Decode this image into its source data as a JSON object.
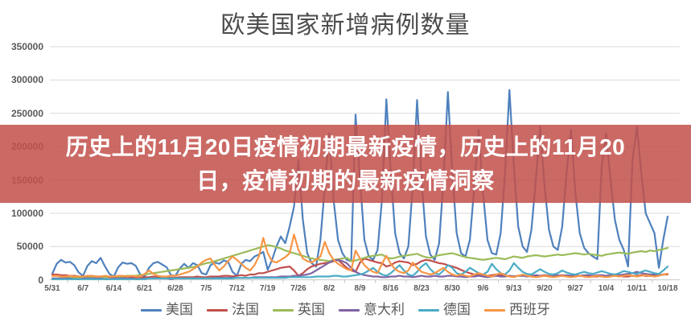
{
  "title": "欧美国家新增病例数量",
  "banner": {
    "line1": "历史上的11月20日疫情初期最新疫情，历史上的11月20",
    "line2": "日，疫情初期的最新疫情洞察",
    "background": "rgba(194,80,74,0.86)",
    "text_color": "#ffffff"
  },
  "axis_style": {
    "grid_color": "#d9d9d9",
    "axis_color": "#c6c6c6",
    "label_color": "#595959"
  },
  "chart_data": {
    "type": "line",
    "title": "欧美国家新增病例数量",
    "xlabel": "",
    "ylabel": "",
    "ylim": [
      0,
      350000
    ],
    "grid": true,
    "legend_position": "bottom",
    "x_frequency": "daily",
    "x_start": "5/31",
    "x_end": "10/18",
    "x_tick_labels": [
      "5/31",
      "6/7",
      "6/14",
      "6/21",
      "6/28",
      "7/5",
      "7/12",
      "7/19",
      "7/26",
      "8/2",
      "8/9",
      "8/16",
      "8/23",
      "8/30",
      "9/6",
      "9/13",
      "9/20",
      "9/27",
      "10/4",
      "10/11",
      "10/18"
    ],
    "y_tick_labels": [
      "350000",
      "300000",
      "250000",
      "200000",
      "150000",
      "100000",
      "50000",
      "0"
    ],
    "y_ticks": [
      350000,
      300000,
      250000,
      200000,
      150000,
      100000,
      50000,
      0
    ],
    "series": [
      {
        "id": "usa",
        "name": "美国",
        "color": "#4F81BD",
        "values": [
          9000,
          24000,
          30000,
          26000,
          27000,
          22000,
          11000,
          6000,
          21000,
          28000,
          25000,
          33000,
          20000,
          9000,
          5000,
          19000,
          26000,
          24000,
          25000,
          21000,
          8000,
          5000,
          18000,
          25000,
          27000,
          23000,
          19000,
          7000,
          6000,
          17000,
          24000,
          18000,
          25000,
          22000,
          10000,
          8000,
          22000,
          26000,
          24000,
          29000,
          27000,
          12000,
          6000,
          24000,
          30000,
          28000,
          35000,
          38000,
          42000,
          15000,
          30000,
          50000,
          65000,
          55000,
          80000,
          110000,
          180000,
          90000,
          40000,
          25000,
          20000,
          60000,
          140000,
          220000,
          120000,
          60000,
          40000,
          30000,
          28000,
          248000,
          150000,
          60000,
          35000,
          30000,
          45000,
          120000,
          271000,
          160000,
          70000,
          40000,
          32000,
          50000,
          140000,
          270000,
          150000,
          65000,
          38000,
          30000,
          55000,
          150000,
          282000,
          160000,
          70000,
          40000,
          35000,
          60000,
          140000,
          225000,
          130000,
          60000,
          40000,
          38000,
          70000,
          160000,
          285000,
          170000,
          80000,
          50000,
          42000,
          75000,
          150000,
          230000,
          140000,
          75000,
          50000,
          45000,
          80000,
          160000,
          225000,
          130000,
          70000,
          48000,
          40000,
          35000,
          31000,
          170000,
          220000,
          150000,
          90000,
          60000,
          45000,
          20000,
          180000,
          230000,
          160000,
          100000,
          85000,
          70000,
          18000,
          60000,
          95000
        ]
      },
      {
        "id": "france",
        "name": "法国",
        "color": "#C0504D",
        "values": [
          8000,
          8000,
          7000,
          7000,
          6000,
          6000,
          5000,
          5000,
          5000,
          6000,
          5000,
          5000,
          4000,
          4000,
          4000,
          5000,
          4000,
          4000,
          4000,
          3000,
          3000,
          4000,
          4000,
          5000,
          4000,
          4000,
          3000,
          3000,
          3000,
          4000,
          4000,
          4000,
          4000,
          5000,
          4000,
          4000,
          5000,
          5000,
          5000,
          6000,
          6000,
          5000,
          6000,
          7000,
          6000,
          8000,
          8000,
          10000,
          10000,
          12000,
          14000,
          16000,
          18000,
          19000,
          20000,
          14000,
          6000,
          10000,
          16000,
          20000,
          22000,
          24000,
          25000,
          26000,
          28000,
          30000,
          24000,
          18000,
          14000,
          12000,
          26000,
          32000,
          30000,
          28000,
          26000,
          25000,
          20000,
          22000,
          26000,
          28000,
          27000,
          26000,
          22000,
          24000,
          28000,
          30000,
          29000,
          27000,
          25000,
          24000,
          22000,
          20000,
          18000,
          15000,
          12000,
          10000,
          8000,
          7000,
          6000,
          6000,
          7000,
          8000,
          7000,
          6000,
          6000,
          5000,
          6000,
          7000,
          6000,
          5000,
          6000,
          6000,
          7000,
          6000,
          5000,
          6000,
          7000,
          6000,
          6000,
          5000,
          6000,
          6000,
          5000,
          5000,
          5000,
          6000,
          6000,
          7000,
          6000,
          6000,
          5000,
          5000,
          6000,
          6000,
          7000,
          6000,
          6000,
          7000,
          7000,
          8000,
          8000
        ]
      },
      {
        "id": "uk",
        "name": "英国",
        "color": "#9BBB59",
        "values": [
          2000,
          2000,
          2000,
          3000,
          3000,
          3000,
          3000,
          3000,
          3000,
          4000,
          4000,
          4000,
          4000,
          5000,
          5000,
          5000,
          5000,
          6000,
          6000,
          6000,
          7000,
          8000,
          9000,
          10000,
          11000,
          12000,
          13000,
          14000,
          15000,
          16000,
          17000,
          18000,
          19000,
          21000,
          23000,
          25000,
          26000,
          28000,
          30000,
          32000,
          34000,
          36000,
          38000,
          40000,
          42000,
          44000,
          46000,
          48000,
          50000,
          52000,
          51000,
          49000,
          47000,
          44000,
          42000,
          40000,
          38000,
          36000,
          34000,
          32000,
          31000,
          30000,
          29000,
          28000,
          30000,
          31000,
          32000,
          33000,
          28000,
          29000,
          31000,
          33000,
          35000,
          36000,
          37000,
          38000,
          34000,
          32000,
          33000,
          35000,
          36000,
          37000,
          38000,
          39000,
          36000,
          34000,
          33000,
          35000,
          37000,
          38000,
          39000,
          40000,
          38000,
          36000,
          34000,
          33000,
          32000,
          31000,
          30000,
          31000,
          32000,
          33000,
          32000,
          31000,
          33000,
          35000,
          34000,
          33000,
          35000,
          36000,
          37000,
          36000,
          35000,
          36000,
          37000,
          38000,
          37000,
          38000,
          39000,
          40000,
          39000,
          38000,
          39000,
          38000,
          37000,
          36000,
          38000,
          39000,
          40000,
          41000,
          40000,
          39000,
          41000,
          42000,
          43000,
          42000,
          44000,
          43000,
          45000,
          46000,
          48000
        ]
      },
      {
        "id": "italy",
        "name": "意大利",
        "color": "#8064A2",
        "values": [
          2000,
          2000,
          2000,
          2000,
          2000,
          1000,
          1000,
          2000,
          2000,
          2000,
          2000,
          2000,
          1000,
          1000,
          2000,
          2000,
          2000,
          2000,
          2000,
          1000,
          1000,
          2000,
          2000,
          2000,
          2000,
          2000,
          2000,
          1000,
          2000,
          2000,
          2000,
          2000,
          2000,
          2000,
          2000,
          2000,
          2000,
          3000,
          3000,
          3000,
          3000,
          3000,
          3000,
          3000,
          3000,
          3000,
          4000,
          4000,
          4000,
          4000,
          4000,
          4000,
          5000,
          5000,
          5000,
          6000,
          6000,
          7000,
          8000,
          10000,
          14000,
          18000,
          22000,
          26000,
          29000,
          30000,
          28000,
          25000,
          18000,
          12000,
          9000,
          7000,
          6000,
          5000,
          5000,
          4000,
          4000,
          5000,
          5000,
          6000,
          5000,
          5000,
          4000,
          5000,
          6000,
          5000,
          5000,
          6000,
          5000,
          5000,
          6000,
          6000,
          5000,
          5000,
          4000,
          5000,
          5000,
          6000,
          5000,
          4000,
          5000,
          6000,
          5000,
          5000,
          6000,
          5000,
          6000,
          6000,
          5000,
          6000,
          7000,
          6000,
          6000,
          5000,
          6000,
          7000,
          6000,
          7000,
          6000,
          7000,
          6000,
          7000,
          7000,
          6000,
          7000,
          7000,
          6000,
          7000,
          8000,
          7000,
          8000,
          9000,
          10000,
          12000,
          10000,
          9000,
          8000,
          8000,
          7000,
          8000,
          9000
        ]
      },
      {
        "id": "germany",
        "name": "德国",
        "color": "#4BACC6",
        "values": [
          1000,
          1000,
          1000,
          1000,
          1000,
          1000,
          1000,
          1000,
          1000,
          1000,
          1000,
          1000,
          1000,
          1000,
          1000,
          1000,
          1000,
          1000,
          1000,
          1000,
          1000,
          1000,
          2000,
          2000,
          2000,
          2000,
          2000,
          2000,
          2000,
          2000,
          2000,
          2000,
          2000,
          2000,
          2000,
          2000,
          2000,
          2000,
          2000,
          2000,
          2000,
          2000,
          3000,
          3000,
          3000,
          3000,
          3000,
          3000,
          3000,
          3000,
          3000,
          3000,
          3000,
          3000,
          4000,
          4000,
          4000,
          4000,
          4000,
          4000,
          5000,
          5000,
          5000,
          5000,
          6000,
          6000,
          5000,
          5000,
          6000,
          7000,
          8000,
          10000,
          14000,
          18000,
          12000,
          8000,
          6000,
          10000,
          16000,
          22000,
          14000,
          8000,
          6000,
          12000,
          20000,
          25000,
          16000,
          10000,
          8000,
          14000,
          22000,
          18000,
          10000,
          8000,
          12000,
          18000,
          14000,
          10000,
          8000,
          12000,
          24000,
          16000,
          10000,
          8000,
          14000,
          25000,
          18000,
          12000,
          9000,
          8000,
          12000,
          16000,
          12000,
          9000,
          8000,
          10000,
          14000,
          11000,
          9000,
          8000,
          10000,
          12000,
          10000,
          9000,
          11000,
          13000,
          11000,
          9000,
          8000,
          10000,
          13000,
          12000,
          10000,
          9000,
          12000,
          14000,
          12000,
          10000,
          9000,
          14000,
          20000
        ]
      },
      {
        "id": "spain",
        "name": "西班牙",
        "color": "#F79646",
        "values": [
          6000,
          6000,
          5000,
          5000,
          6000,
          5000,
          5000,
          5000,
          6000,
          6000,
          5000,
          5000,
          6000,
          5000,
          5000,
          6000,
          6000,
          5000,
          6000,
          5000,
          5000,
          9000,
          14000,
          9000,
          6000,
          5000,
          5000,
          6000,
          6000,
          8000,
          10000,
          12000,
          16000,
          20000,
          26000,
          30000,
          32000,
          22000,
          14000,
          20000,
          28000,
          35000,
          30000,
          24000,
          18000,
          14000,
          22000,
          35000,
          63000,
          40000,
          28000,
          26000,
          30000,
          34000,
          40000,
          68000,
          45000,
          32000,
          28000,
          26000,
          30000,
          35000,
          57000,
          40000,
          30000,
          24000,
          20000,
          16000,
          14000,
          44000,
          32000,
          22000,
          16000,
          12000,
          10000,
          24000,
          36000,
          24000,
          16000,
          12000,
          10000,
          14000,
          26000,
          18000,
          12000,
          10000,
          8000,
          10000,
          14000,
          18000,
          12000,
          8000,
          6000,
          8000,
          6000,
          5000,
          8000,
          10000,
          8000,
          6000,
          5000,
          8000,
          10000,
          7000,
          5000,
          4000,
          6000,
          8000,
          6000,
          5000,
          4000,
          5000,
          6000,
          5000,
          4000,
          5000,
          6000,
          5000,
          4000,
          5000,
          6000,
          5000,
          4000,
          5000,
          6000,
          5000,
          4000,
          5000,
          6000,
          5000,
          6000,
          7000,
          6000,
          5000,
          6000,
          7000,
          6000,
          5000,
          6000,
          8000,
          9000
        ]
      }
    ]
  }
}
